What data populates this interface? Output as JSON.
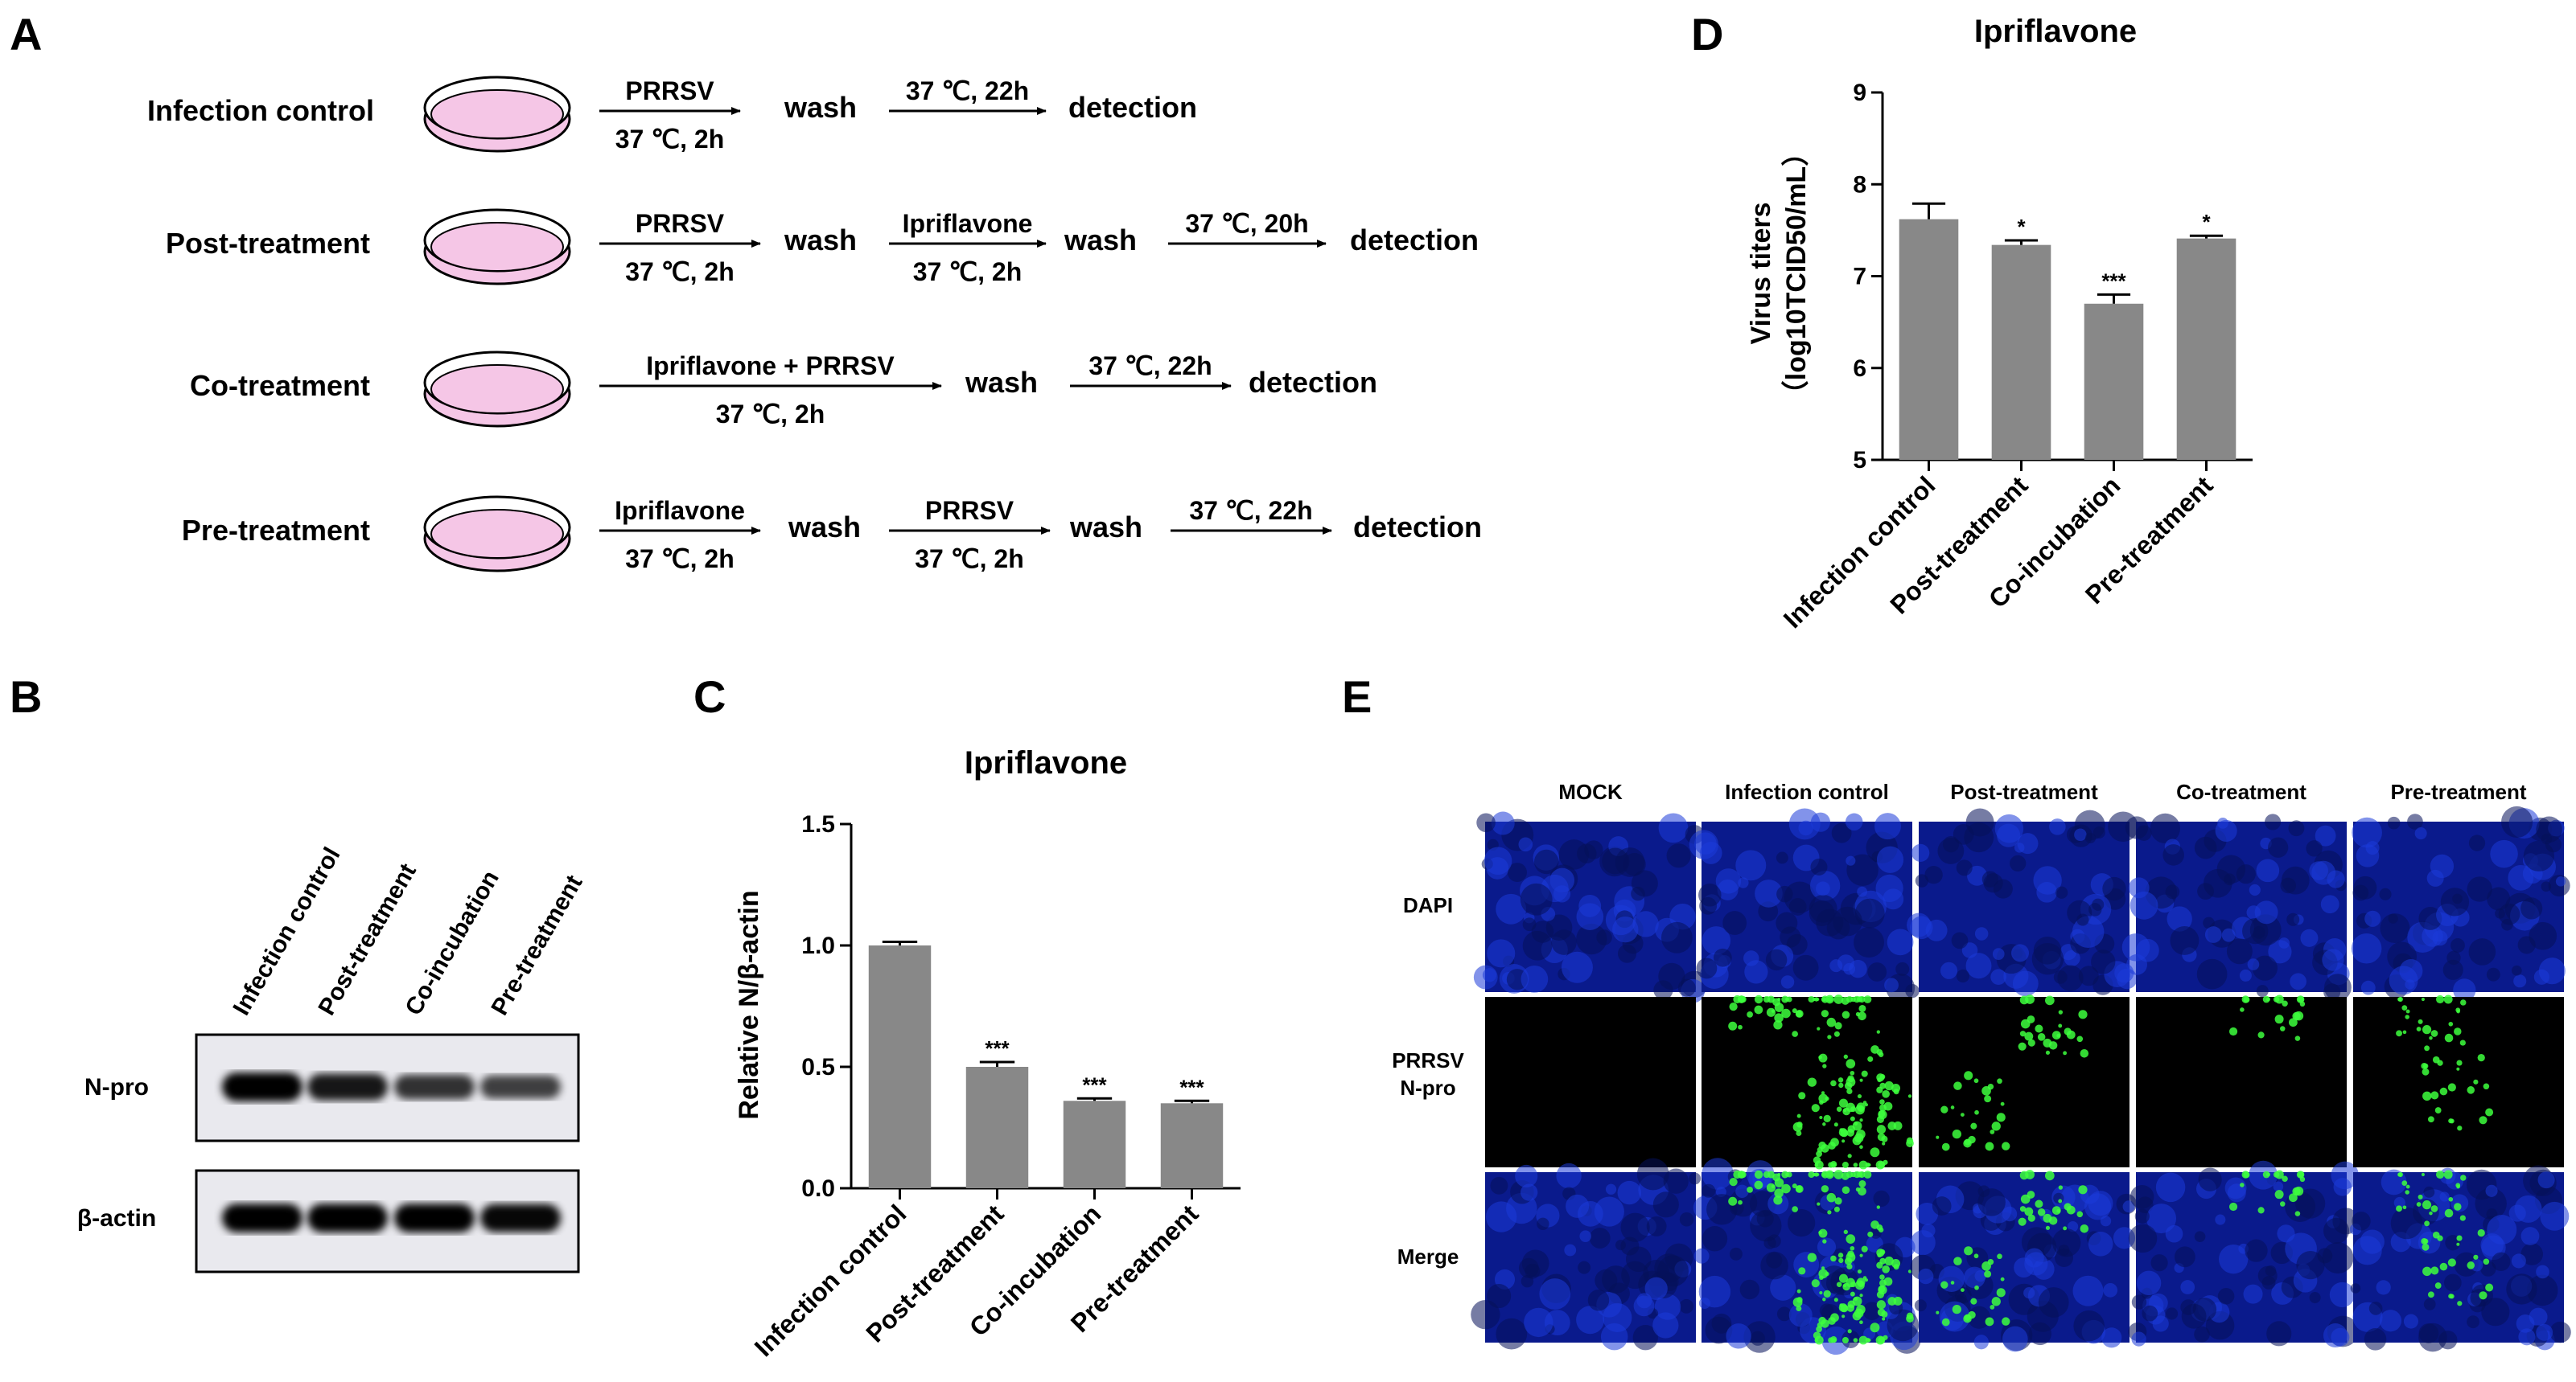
{
  "panels": {
    "A": "A",
    "B": "B",
    "C": "C",
    "D": "D",
    "E": "E"
  },
  "protocol": {
    "rows": [
      {
        "name": "Infection control",
        "steps": [
          {
            "above": "PRRSV",
            "below": "37 ℃, 2h"
          },
          {
            "node": "wash"
          },
          {
            "above": "37 ℃, 22h",
            "below": ""
          },
          {
            "node": "detection"
          }
        ]
      },
      {
        "name": "Post-treatment",
        "steps": [
          {
            "above": "PRRSV",
            "below": "37 ℃, 2h"
          },
          {
            "node": "wash"
          },
          {
            "above": "Ipriflavone",
            "below": "37 ℃, 2h"
          },
          {
            "node": "wash"
          },
          {
            "above": "37 ℃, 20h",
            "below": ""
          },
          {
            "node": "detection"
          }
        ]
      },
      {
        "name": "Co-treatment",
        "steps": [
          {
            "above": "Ipriflavone  +  PRRSV",
            "below": "37 ℃, 2h"
          },
          {
            "node": "wash"
          },
          {
            "above": "37 ℃, 22h",
            "below": ""
          },
          {
            "node": "detection"
          }
        ]
      },
      {
        "name": "Pre-treatment",
        "steps": [
          {
            "above": "Ipriflavone",
            "below": "37 ℃, 2h"
          },
          {
            "node": "wash"
          },
          {
            "above": "PRRSV",
            "below": "37 ℃, 2h"
          },
          {
            "node": "wash"
          },
          {
            "above": "37 ℃, 22h",
            "below": ""
          },
          {
            "node": "detection"
          }
        ]
      }
    ],
    "colors": {
      "dish": "#f5c6e6",
      "dish_stroke": "#000000"
    }
  },
  "western": {
    "lanes": [
      "Infection control",
      "Post-treatment",
      "Co-incubation",
      "Pre-treatment"
    ],
    "bands": [
      {
        "label": "N-pro",
        "intensity": [
          1.0,
          0.82,
          0.62,
          0.5
        ]
      },
      {
        "label": "β-actin",
        "intensity": [
          1.0,
          1.0,
          1.0,
          0.95
        ]
      }
    ]
  },
  "chart_data": [
    {
      "panel": "C",
      "type": "bar",
      "title": "Ipriflavone",
      "xlabel": "",
      "ylabel": "Relative N/β-actin",
      "categories": [
        "Infection control",
        "Post-treatment",
        "Co-incubation",
        "Pre-treatment"
      ],
      "values": [
        1.0,
        0.5,
        0.36,
        0.35
      ],
      "errors": [
        0.015,
        0.02,
        0.01,
        0.01
      ],
      "significance": [
        "",
        "***",
        "***",
        "***"
      ],
      "ylim": [
        0,
        1.5
      ],
      "yticks": [
        "0.0",
        "0.5",
        "1.0",
        "1.5"
      ],
      "bar_color": "#888888"
    },
    {
      "panel": "D",
      "type": "bar",
      "title": "Ipriflavone",
      "xlabel": "",
      "ylabel_line1": "Virus titers",
      "ylabel_line2": "（log10TCID50/mL）",
      "categories": [
        "Infection control",
        "Post-treatment",
        "Co-incubation",
        "Pre-treatment"
      ],
      "values": [
        7.62,
        7.34,
        6.7,
        7.41
      ],
      "errors": [
        0.17,
        0.05,
        0.1,
        0.03
      ],
      "significance": [
        "",
        "*",
        "***",
        "*"
      ],
      "ylim": [
        5,
        9
      ],
      "yticks": [
        "5",
        "6",
        "7",
        "8",
        "9"
      ],
      "bar_color": "#888888"
    }
  ],
  "fluorescence": {
    "columns": [
      "MOCK",
      "Infection control",
      "Post-treatment",
      "Co-treatment",
      "Pre-treatment"
    ],
    "rows": [
      "DAPI",
      "PRRSV\nN-pro",
      "Merge"
    ],
    "infection_level": [
      0,
      1.0,
      0.3,
      0.12,
      0.28
    ]
  }
}
